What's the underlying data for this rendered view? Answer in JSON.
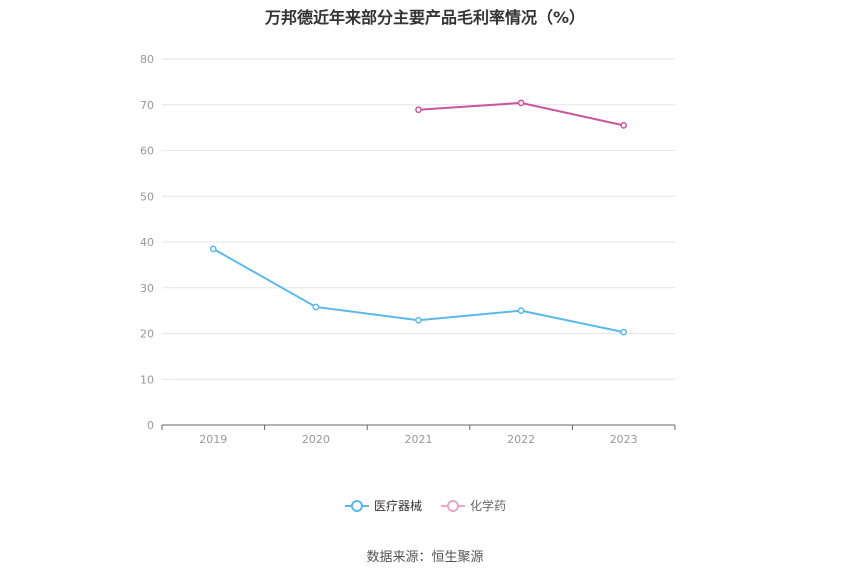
{
  "title": "万邦德近年来部分主要产品毛利率情况（%）",
  "source": "数据来源：恒生聚源",
  "colors": {
    "series1": "#5ab9ea",
    "series2": "#c9559e",
    "grid": "#e3e6ee",
    "axis": "#666666",
    "tick": "#999999"
  },
  "chart_data": {
    "type": "line",
    "title": "万邦德近年来部分主要产品毛利率情况（%）",
    "categories": [
      "2019",
      "2020",
      "2021",
      "2022",
      "2023"
    ],
    "ylim": [
      0,
      80
    ],
    "yticks": [
      0,
      10,
      20,
      30,
      40,
      50,
      60,
      70,
      80
    ],
    "grid": true,
    "legend_position": "bottom",
    "series": [
      {
        "name": "医疗器械",
        "values": [
          38.5,
          25.8,
          22.9,
          25.0,
          20.3
        ],
        "color": "#5ab9ea"
      },
      {
        "name": "化学药",
        "values": [
          null,
          null,
          68.9,
          70.4,
          65.5
        ],
        "color": "#c9559e"
      }
    ]
  }
}
